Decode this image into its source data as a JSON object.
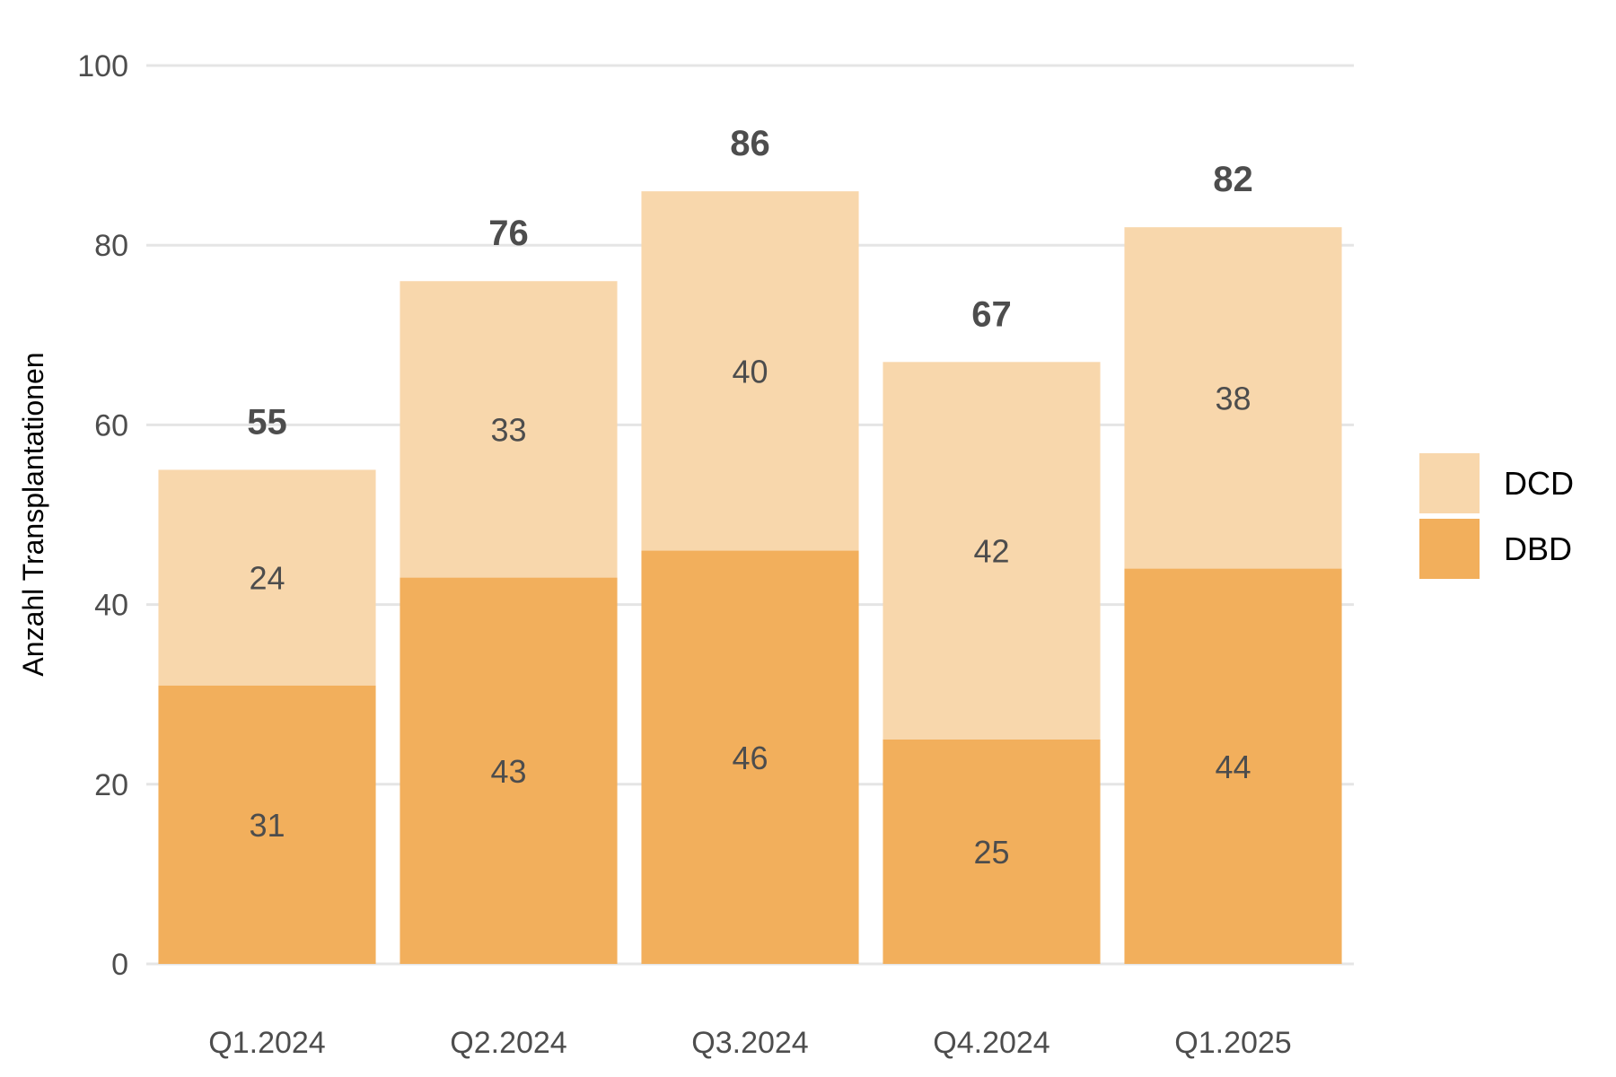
{
  "chart_data": {
    "type": "bar",
    "stacked": true,
    "categories": [
      "Q1.2024",
      "Q2.2024",
      "Q3.2024",
      "Q4.2024",
      "Q1.2025"
    ],
    "series": [
      {
        "name": "DBD",
        "values": [
          31,
          43,
          46,
          25,
          44
        ],
        "color": "#F2AF5C"
      },
      {
        "name": "DCD",
        "values": [
          24,
          33,
          40,
          42,
          38
        ],
        "color": "#F8D7AC"
      }
    ],
    "totals": [
      55,
      76,
      86,
      67,
      82
    ],
    "ylabel": "Anzahl Transplantationen",
    "xlabel": "",
    "ylim": [
      0,
      100
    ],
    "yticks": [
      0,
      20,
      40,
      60,
      80,
      100
    ],
    "grid": true,
    "legend": "right",
    "legend_order": [
      "DCD",
      "DBD"
    ]
  }
}
